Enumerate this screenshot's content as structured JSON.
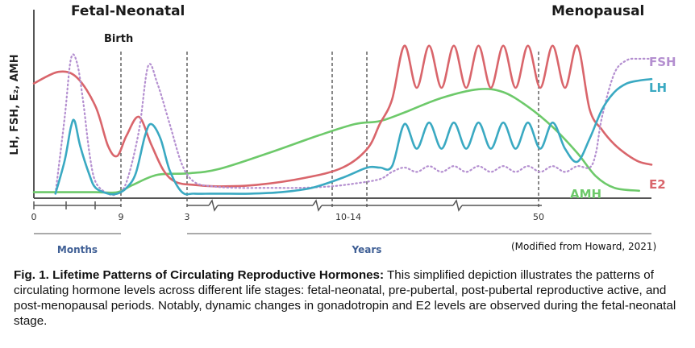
{
  "chart_data": {
    "type": "line",
    "title_left": "Fetal-Neonatal",
    "title_right": "Menopausal",
    "event_label": "Birth",
    "ylabel": "LH, FSH, E₂, AMH",
    "x_ticks": [
      "0",
      "9",
      "3",
      "10-14",
      "50"
    ],
    "period_labels": [
      "Months",
      "Years"
    ],
    "ylim": [
      0,
      100
    ],
    "x_range": [
      0,
      100
    ],
    "series": [
      {
        "name": "FSH",
        "color": "#b48fd0",
        "style": "dotted",
        "x": [
          3.5,
          5,
          6,
          7,
          8,
          9,
          10,
          12,
          13.5,
          15,
          17,
          18.5,
          20,
          22,
          24,
          26,
          29,
          33,
          38,
          43,
          48,
          52,
          56,
          58,
          60,
          62,
          64,
          66,
          68,
          70,
          72,
          74,
          76,
          78,
          80,
          82,
          84,
          86,
          88,
          90,
          91,
          92,
          94,
          96,
          98,
          100
        ],
        "values": [
          2,
          55,
          95,
          92,
          65,
          30,
          10,
          2,
          2,
          10,
          45,
          90,
          78,
          50,
          22,
          10,
          7,
          6,
          6,
          6,
          7,
          9,
          12,
          17,
          20,
          17,
          21,
          17,
          21,
          17,
          21,
          17,
          21,
          17,
          21,
          17,
          21,
          17,
          21,
          20,
          30,
          55,
          85,
          94,
          95,
          95
        ]
      },
      {
        "name": "LH",
        "color": "#3aa9c2",
        "style": "solid",
        "x": [
          3.5,
          5,
          6,
          6.6,
          7.5,
          9,
          10,
          12,
          13.5,
          15,
          16.5,
          18,
          19,
          20.5,
          22,
          24,
          26,
          30,
          35,
          40,
          45,
          50,
          54,
          56,
          58,
          60,
          62,
          64,
          66,
          68,
          70,
          72,
          74,
          76,
          78,
          80,
          82,
          84,
          86,
          88,
          90,
          92,
          94,
          96,
          98,
          100
        ],
        "values": [
          2,
          25,
          48,
          52,
          35,
          15,
          6,
          2,
          2,
          6,
          16,
          42,
          50,
          40,
          18,
          3,
          2,
          2,
          2,
          3,
          6,
          13,
          20,
          20,
          21,
          50,
          33,
          51,
          33,
          51,
          33,
          51,
          33,
          51,
          33,
          51,
          33,
          51,
          33,
          24,
          40,
          60,
          72,
          78,
          80,
          81
        ]
      },
      {
        "name": "E2",
        "color": "#d9656b",
        "style": "solid",
        "x": [
          0,
          4,
          7,
          10,
          12,
          13.5,
          15,
          17,
          19,
          21,
          23,
          26,
          30,
          36,
          44,
          50,
          54,
          56,
          58,
          60,
          62,
          64,
          66,
          68,
          70,
          72,
          74,
          76,
          78,
          80,
          82,
          84,
          86,
          88,
          90,
          92,
          94,
          96,
          98,
          100
        ],
        "values": [
          78,
          86,
          82,
          62,
          35,
          28,
          42,
          55,
          36,
          18,
          10,
          8,
          7,
          8,
          13,
          20,
          33,
          50,
          67,
          104,
          75,
          104,
          75,
          104,
          75,
          104,
          75,
          104,
          75,
          104,
          75,
          104,
          75,
          104,
          60,
          46,
          36,
          29,
          24,
          22
        ]
      },
      {
        "name": "AMH",
        "color": "#6dc96a",
        "style": "solid",
        "x": [
          0,
          5,
          10,
          13.5,
          16,
          20,
          25,
          30,
          38,
          46,
          52,
          56,
          60,
          66,
          72,
          76,
          80,
          84,
          88,
          91,
          94,
          98
        ],
        "values": [
          3,
          3,
          3,
          3,
          8,
          15,
          16,
          19,
          30,
          42,
          50,
          52,
          58,
          68,
          74,
          72,
          62,
          48,
          30,
          14,
          6,
          4
        ]
      }
    ]
  },
  "source_note": "(Modified from Howard, 2021)",
  "caption": {
    "bold": "Fig. 1. Lifetime Patterns of Circulating Reproductive Hormones:",
    "text": " This simplified depiction illustrates the patterns of circulating hormone levels across different life stages: fetal-neonatal, pre-pubertal, post-pubertal reproductive active, and post-menopausal periods. Notably, dynamic changes in gonadotropin and E2 levels are observed during the fetal-neonatal stage."
  }
}
